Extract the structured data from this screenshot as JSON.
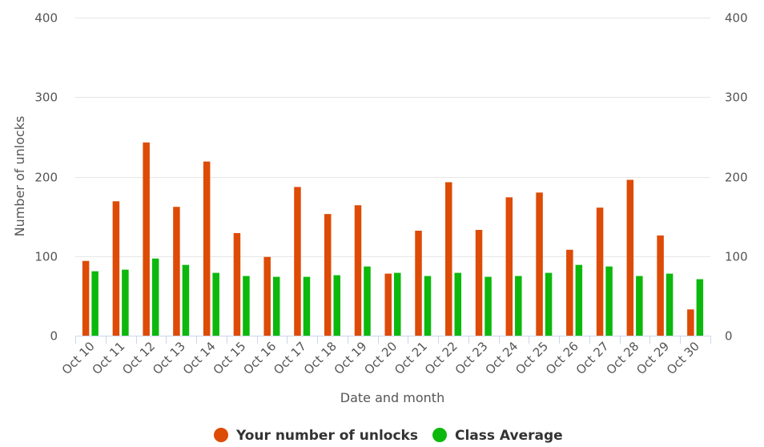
{
  "chart_data": {
    "type": "bar",
    "xlabel": "Date and month",
    "ylabel": "Number of unlocks",
    "ylim": [
      0,
      400
    ],
    "yticks": [
      0,
      100,
      200,
      300,
      400
    ],
    "grid": true,
    "legend_position": "bottom-center",
    "categories": [
      "Oct 10",
      "Oct 11",
      "Oct 12",
      "Oct 13",
      "Oct 14",
      "Oct 15",
      "Oct 16",
      "Oct 17",
      "Oct 18",
      "Oct 19",
      "Oct 20",
      "Oct 21",
      "Oct 22",
      "Oct 23",
      "Oct 24",
      "Oct 25",
      "Oct 26",
      "Oct 27",
      "Oct 28",
      "Oct 29",
      "Oct 30"
    ],
    "series": [
      {
        "name": "Your number of unlocks",
        "color": "#dd4b06",
        "values": [
          94,
          169,
          243,
          162,
          219,
          129,
          99,
          187,
          153,
          164,
          78,
          132,
          193,
          133,
          174,
          180,
          108,
          161,
          196,
          126,
          33
        ]
      },
      {
        "name": "Class Average",
        "color": "#0cb80c",
        "values": [
          81,
          83,
          97,
          89,
          79,
          75,
          74,
          74,
          76,
          87,
          79,
          75,
          79,
          74,
          75,
          79,
          89,
          87,
          75,
          78,
          71
        ]
      }
    ]
  }
}
